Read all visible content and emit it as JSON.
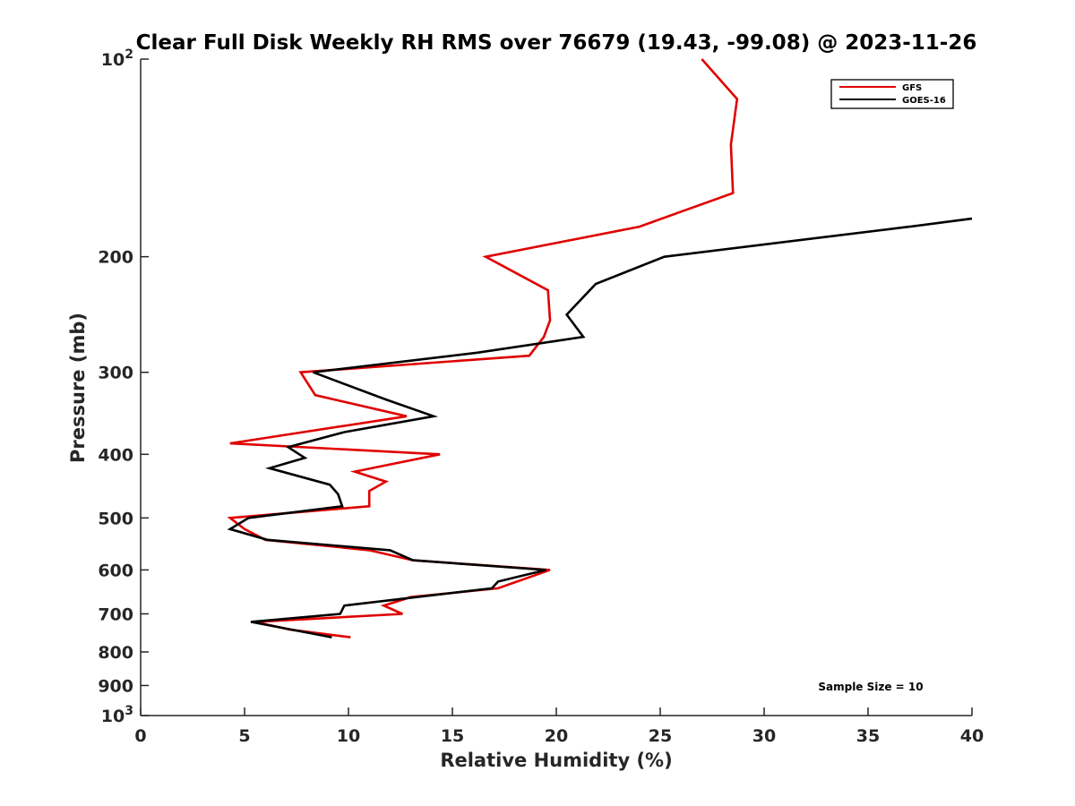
{
  "chart_data": {
    "type": "line",
    "title": "Clear Full Disk Weekly RH RMS over 76679 (19.43, -99.08) @ 2023-11-26",
    "xlabel": "Relative Humidity (%)",
    "ylabel": "Pressure (mb)",
    "xlim": [
      0,
      40
    ],
    "ylim": [
      100,
      1000
    ],
    "y_scale": "log",
    "y_reversed": true,
    "x_ticks": [
      "0",
      "5",
      "10",
      "15",
      "20",
      "25",
      "30",
      "35",
      "40"
    ],
    "y_ticks": [
      {
        "value": 100,
        "base": "10",
        "exp": "2"
      },
      {
        "value": 200,
        "label": "200"
      },
      {
        "value": 300,
        "label": "300"
      },
      {
        "value": 400,
        "label": "400"
      },
      {
        "value": 500,
        "label": "500"
      },
      {
        "value": 600,
        "label": "600"
      },
      {
        "value": 700,
        "label": "700"
      },
      {
        "value": 800,
        "label": "800"
      },
      {
        "value": 900,
        "label": "900"
      },
      {
        "value": 1000,
        "base": "10",
        "exp": "3"
      }
    ],
    "grid": false,
    "legend_position": "top-right",
    "annotation": "Sample Size = 10",
    "series": [
      {
        "name": "GFS",
        "color": "#e00000",
        "points": [
          {
            "x": 27.0,
            "p": 100
          },
          {
            "x": 28.7,
            "p": 115
          },
          {
            "x": 28.4,
            "p": 135
          },
          {
            "x": 28.5,
            "p": 160
          },
          {
            "x": 24.0,
            "p": 180
          },
          {
            "x": 16.6,
            "p": 200
          },
          {
            "x": 19.6,
            "p": 225
          },
          {
            "x": 19.7,
            "p": 250
          },
          {
            "x": 19.4,
            "p": 265
          },
          {
            "x": 18.7,
            "p": 283
          },
          {
            "x": 7.7,
            "p": 300
          },
          {
            "x": 8.4,
            "p": 325
          },
          {
            "x": 12.8,
            "p": 350
          },
          {
            "x": 4.3,
            "p": 385
          },
          {
            "x": 14.4,
            "p": 400
          },
          {
            "x": 10.3,
            "p": 425
          },
          {
            "x": 11.8,
            "p": 440
          },
          {
            "x": 11.0,
            "p": 455
          },
          {
            "x": 11.0,
            "p": 480
          },
          {
            "x": 4.3,
            "p": 500
          },
          {
            "x": 5.0,
            "p": 520
          },
          {
            "x": 6.0,
            "p": 540
          },
          {
            "x": 11.0,
            "p": 560
          },
          {
            "x": 13.1,
            "p": 580
          },
          {
            "x": 19.7,
            "p": 600
          },
          {
            "x": 17.2,
            "p": 640
          },
          {
            "x": 13.0,
            "p": 660
          },
          {
            "x": 11.7,
            "p": 680
          },
          {
            "x": 12.6,
            "p": 700
          },
          {
            "x": 5.5,
            "p": 720
          },
          {
            "x": 7.2,
            "p": 740
          },
          {
            "x": 10.1,
            "p": 760
          }
        ]
      },
      {
        "name": "GOES-16",
        "color": "#000000",
        "points": [
          {
            "x": 40.0,
            "p": 175
          },
          {
            "x": 37.0,
            "p": 180
          },
          {
            "x": 25.2,
            "p": 200
          },
          {
            "x": 21.9,
            "p": 220
          },
          {
            "x": 20.5,
            "p": 245
          },
          {
            "x": 21.3,
            "p": 265
          },
          {
            "x": 16.2,
            "p": 280
          },
          {
            "x": 8.3,
            "p": 300
          },
          {
            "x": 11.8,
            "p": 330
          },
          {
            "x": 14.1,
            "p": 350
          },
          {
            "x": 9.8,
            "p": 370
          },
          {
            "x": 7.1,
            "p": 390
          },
          {
            "x": 7.9,
            "p": 405
          },
          {
            "x": 6.2,
            "p": 420
          },
          {
            "x": 9.1,
            "p": 445
          },
          {
            "x": 9.5,
            "p": 460
          },
          {
            "x": 9.7,
            "p": 480
          },
          {
            "x": 5.2,
            "p": 500
          },
          {
            "x": 4.3,
            "p": 520
          },
          {
            "x": 6.1,
            "p": 540
          },
          {
            "x": 12.0,
            "p": 560
          },
          {
            "x": 13.1,
            "p": 580
          },
          {
            "x": 19.5,
            "p": 600
          },
          {
            "x": 17.2,
            "p": 625
          },
          {
            "x": 16.9,
            "p": 640
          },
          {
            "x": 9.8,
            "p": 680
          },
          {
            "x": 9.6,
            "p": 700
          },
          {
            "x": 5.3,
            "p": 720
          },
          {
            "x": 9.2,
            "p": 760
          }
        ]
      }
    ]
  }
}
